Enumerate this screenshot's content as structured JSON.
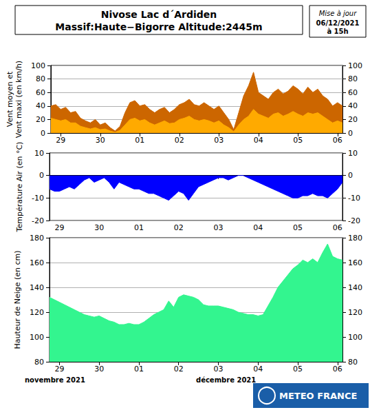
{
  "header": {
    "title": "Nivose Lac d´Ardiden",
    "subtitle": "Massif:Haute−Bigorre Altitude:2445m",
    "update": [
      "Mise à jour",
      "06/12/2021",
      "à 15h"
    ]
  },
  "months": [
    "novembre 2021",
    "décembre 2021"
  ],
  "logo": "METEO FRANCE",
  "chart_data": [
    {
      "type": "area",
      "ylabel": "Vent moyen et\nVent maxi (en km/h)",
      "categories": [
        null,
        null,
        "29",
        null,
        null,
        null,
        null,
        null,
        null,
        null,
        "30",
        null,
        null,
        null,
        null,
        null,
        null,
        null,
        "01",
        null,
        null,
        null,
        null,
        null,
        null,
        null,
        "02",
        null,
        null,
        null,
        null,
        null,
        null,
        null,
        "03",
        null,
        null,
        null,
        null,
        null,
        null,
        null,
        "04",
        null,
        null,
        null,
        null,
        null,
        null,
        null,
        "05",
        null,
        null,
        null,
        null,
        null,
        null,
        null,
        "06",
        null
      ],
      "series": [
        {
          "name": "Vent maxi",
          "color": "#cc6600",
          "values": [
            40,
            42,
            35,
            38,
            30,
            32,
            22,
            18,
            15,
            20,
            12,
            15,
            8,
            3,
            10,
            30,
            45,
            48,
            40,
            42,
            35,
            30,
            35,
            38,
            30,
            35,
            42,
            45,
            50,
            42,
            40,
            45,
            40,
            35,
            40,
            30,
            20,
            5,
            30,
            55,
            70,
            90,
            60,
            55,
            50,
            60,
            65,
            58,
            62,
            70,
            65,
            58,
            68,
            60,
            65,
            55,
            50,
            40,
            45,
            40
          ]
        },
        {
          "name": "Vent moyen",
          "color": "#ffaa00",
          "values": [
            22,
            20,
            18,
            20,
            15,
            15,
            10,
            8,
            6,
            8,
            5,
            6,
            3,
            1,
            4,
            12,
            20,
            22,
            18,
            20,
            15,
            12,
            15,
            18,
            14,
            15,
            20,
            22,
            25,
            20,
            18,
            20,
            18,
            15,
            18,
            12,
            8,
            2,
            12,
            20,
            25,
            35,
            28,
            25,
            22,
            28,
            30,
            25,
            28,
            32,
            28,
            25,
            30,
            28,
            30,
            25,
            20,
            15,
            18,
            15
          ]
        }
      ],
      "ylim": [
        0,
        100
      ],
      "yticks": [
        0,
        20,
        40,
        60,
        80,
        100
      ],
      "grid": true
    },
    {
      "type": "area",
      "ylabel": "Température Air (en °C)",
      "categories": [
        null,
        null,
        "29",
        null,
        null,
        null,
        null,
        null,
        null,
        null,
        "30",
        null,
        null,
        null,
        null,
        null,
        null,
        null,
        "01",
        null,
        null,
        null,
        null,
        null,
        null,
        null,
        "02",
        null,
        null,
        null,
        null,
        null,
        null,
        null,
        "03",
        null,
        null,
        null,
        null,
        null,
        null,
        null,
        "04",
        null,
        null,
        null,
        null,
        null,
        null,
        null,
        "05",
        null,
        null,
        null,
        null,
        null,
        null,
        null,
        "06",
        null
      ],
      "values": [
        -6,
        -7,
        -7,
        -6,
        -5,
        -6,
        -4,
        -2,
        -1,
        -3,
        -2,
        -1,
        -3,
        -6,
        -3,
        -4,
        -5,
        -6,
        -6,
        -7,
        -8,
        -8,
        -9,
        -10,
        -11,
        -9,
        -7,
        -8,
        -11,
        -8,
        -5,
        -4,
        -3,
        -2,
        -1,
        -1,
        -2,
        -1,
        0,
        0,
        -1,
        -2,
        -3,
        -4,
        -5,
        -6,
        -7,
        -8,
        -9,
        -10,
        -10,
        -9,
        -9,
        -8,
        -9,
        -9,
        -10,
        -8,
        -6,
        -3
      ],
      "color": "#0000ff",
      "ylim": [
        -20,
        10
      ],
      "yticks": [
        -20,
        -10,
        0,
        10
      ],
      "grid": true
    },
    {
      "type": "area",
      "ylabel": "Hauteur de Neige (en cm)",
      "categories": [
        null,
        null,
        "29",
        null,
        null,
        null,
        null,
        null,
        null,
        null,
        "30",
        null,
        null,
        null,
        null,
        null,
        null,
        null,
        "01",
        null,
        null,
        null,
        null,
        null,
        null,
        null,
        "02",
        null,
        null,
        null,
        null,
        null,
        null,
        null,
        "03",
        null,
        null,
        null,
        null,
        null,
        null,
        null,
        "04",
        null,
        null,
        null,
        null,
        null,
        null,
        null,
        "05",
        null,
        null,
        null,
        null,
        null,
        null,
        null,
        "06",
        null
      ],
      "values": [
        132,
        130,
        128,
        126,
        124,
        122,
        120,
        118,
        117,
        116,
        117,
        115,
        113,
        112,
        110,
        110,
        111,
        110,
        110,
        112,
        115,
        118,
        120,
        122,
        129,
        124,
        132,
        134,
        133,
        132,
        130,
        126,
        125,
        125,
        125,
        124,
        123,
        122,
        120,
        119,
        118,
        118,
        117,
        118,
        125,
        132,
        140,
        145,
        150,
        155,
        158,
        162,
        160,
        163,
        160,
        168,
        175,
        165,
        163,
        162
      ],
      "color": "#33f58f",
      "ylim": [
        80,
        180
      ],
      "yticks": [
        80,
        100,
        120,
        140,
        160,
        180
      ],
      "grid": true
    }
  ]
}
